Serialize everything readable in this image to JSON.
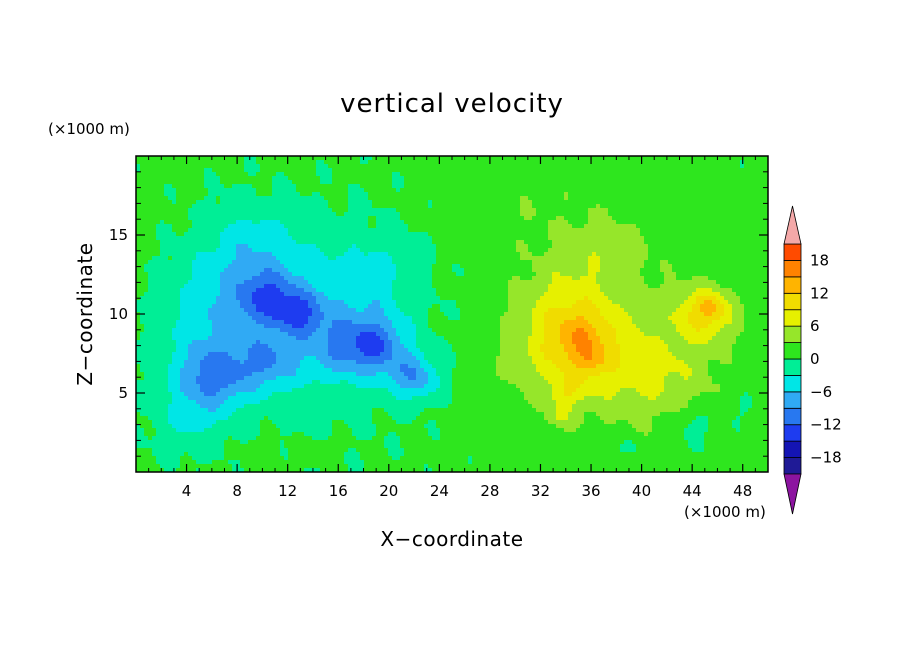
{
  "chart_data": {
    "type": "heatmap",
    "title": "vertical velocity",
    "xlabel": "X−coordinate",
    "ylabel": "Z−coordinate",
    "x_units": "(×1000 m)",
    "y_units": "(×1000 m)",
    "xlim": [
      0,
      50
    ],
    "ylim": [
      0,
      20
    ],
    "x_ticks": [
      4,
      8,
      12,
      16,
      20,
      24,
      28,
      32,
      36,
      40,
      44,
      48
    ],
    "x_tick_labels": [
      "4",
      "8",
      "12",
      "16",
      "20",
      "24",
      "28",
      "32",
      "36",
      "40",
      "44",
      "48"
    ],
    "y_ticks": [
      5,
      10,
      15
    ],
    "y_tick_labels": [
      "5",
      "10",
      "15"
    ],
    "colorbar": {
      "levels": [
        -21,
        -18,
        -15,
        -12,
        -9,
        -6,
        -3,
        0,
        3,
        6,
        9,
        12,
        15,
        18,
        21
      ],
      "tick_values": [
        -18,
        -12,
        -6,
        0,
        6,
        12,
        18
      ],
      "tick_labels": [
        "−18",
        "−12",
        "−6",
        "0",
        "6",
        "12",
        "18"
      ],
      "colors": [
        "#4b0c8c",
        "#1f1a96",
        "#1414b4",
        "#1e3cf0",
        "#2878f0",
        "#30aaf4",
        "#00e6e6",
        "#00ee96",
        "#2ee61e",
        "#96e62a",
        "#e6f000",
        "#f0dc00",
        "#ffb400",
        "#ff8200",
        "#ff4b00",
        "#e61e14"
      ],
      "under_color": "#8c14a0",
      "over_color": "#f4a8a8"
    },
    "features": [
      {
        "x": 6,
        "z": 6,
        "w": 3,
        "peak": -10
      },
      {
        "x": 10.5,
        "z": 11,
        "w": 2.5,
        "peak": -9
      },
      {
        "x": 10.5,
        "z": 7,
        "w": 2.5,
        "peak": -7
      },
      {
        "x": 13,
        "z": 10,
        "w": 2,
        "peak": -8
      },
      {
        "x": 19,
        "z": 8,
        "w": 2.5,
        "peak": -9
      },
      {
        "x": 22,
        "z": 6,
        "w": 2,
        "peak": -8
      },
      {
        "x": 16,
        "z": 8,
        "w": 3,
        "peak": -6
      },
      {
        "x": 9,
        "z": 14,
        "w": 4,
        "peak": -5
      },
      {
        "x": 18,
        "z": 12,
        "w": 4,
        "peak": -4
      },
      {
        "x": 6,
        "z": 10,
        "w": 4,
        "peak": -5
      },
      {
        "x": 4,
        "z": 3,
        "w": 3,
        "peak": -3
      },
      {
        "x": 14.5,
        "z": 1.5,
        "w": 1,
        "peak": 2
      },
      {
        "x": 10,
        "z": 1,
        "w": 1.5,
        "peak": 2
      },
      {
        "x": 35,
        "z": 8,
        "w": 5,
        "peak": 8
      },
      {
        "x": 35,
        "z": 8.5,
        "w": 2.2,
        "peak": 5
      },
      {
        "x": 36,
        "z": 7,
        "w": 1.2,
        "peak": 4
      },
      {
        "x": 34,
        "z": 5,
        "w": 1.2,
        "peak": 4
      },
      {
        "x": 33.5,
        "z": 3.5,
        "w": 1,
        "peak": 3
      },
      {
        "x": 33.5,
        "z": 11,
        "w": 3,
        "peak": 2
      },
      {
        "x": 45,
        "z": 10,
        "w": 2.5,
        "peak": 8
      },
      {
        "x": 45.5,
        "z": 10.5,
        "w": 1.2,
        "peak": 4
      },
      {
        "x": 42,
        "z": 6,
        "w": 4,
        "peak": 4
      },
      {
        "x": 37,
        "z": 14,
        "w": 4,
        "peak": 3
      },
      {
        "x": 44,
        "z": 3,
        "w": 2,
        "peak": -3
      },
      {
        "x": 39,
        "z": 1.5,
        "w": 1,
        "peak": -2
      },
      {
        "x": 30,
        "z": 17,
        "w": 5,
        "peak": 1.5
      },
      {
        "x": 48,
        "z": 4,
        "w": 1.5,
        "peak": -1.5
      }
    ]
  }
}
